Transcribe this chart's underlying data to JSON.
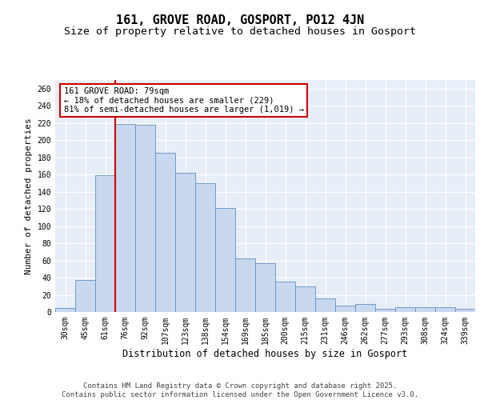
{
  "title": "161, GROVE ROAD, GOSPORT, PO12 4JN",
  "subtitle": "Size of property relative to detached houses in Gosport",
  "xlabel": "Distribution of detached houses by size in Gosport",
  "ylabel": "Number of detached properties",
  "categories": [
    "30sqm",
    "45sqm",
    "61sqm",
    "76sqm",
    "92sqm",
    "107sqm",
    "123sqm",
    "138sqm",
    "154sqm",
    "169sqm",
    "185sqm",
    "200sqm",
    "215sqm",
    "231sqm",
    "246sqm",
    "262sqm",
    "277sqm",
    "293sqm",
    "308sqm",
    "324sqm",
    "339sqm"
  ],
  "values": [
    5,
    37,
    159,
    219,
    218,
    185,
    162,
    150,
    121,
    62,
    57,
    35,
    30,
    16,
    7,
    9,
    4,
    6,
    6,
    6,
    4
  ],
  "bar_color": "#c8d8ee",
  "bar_edge_color": "#6090c0",
  "red_line_x": 2.5,
  "red_line_color": "#cc0000",
  "annotation_text": "161 GROVE ROAD: 79sqm\n← 18% of detached houses are smaller (229)\n81% of semi-detached houses are larger (1,019) →",
  "annotation_box_color": "#ffffff",
  "annotation_box_edge": "#cc0000",
  "ylim": [
    0,
    270
  ],
  "yticks": [
    0,
    20,
    40,
    60,
    80,
    100,
    120,
    140,
    160,
    180,
    200,
    220,
    240,
    260
  ],
  "background_color": "#e8eef8",
  "grid_color": "#ffffff",
  "footer_text": "Contains HM Land Registry data © Crown copyright and database right 2025.\nContains public sector information licensed under the Open Government Licence v3.0.",
  "title_fontsize": 11,
  "subtitle_fontsize": 9.5,
  "xlabel_fontsize": 8.5,
  "ylabel_fontsize": 8,
  "tick_fontsize": 7,
  "annotation_fontsize": 7.5,
  "footer_fontsize": 6.5
}
